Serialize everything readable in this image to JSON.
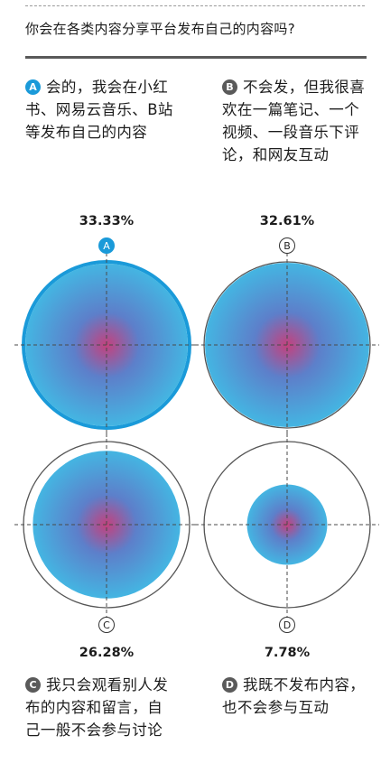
{
  "question": "你会在各类内容分享平台发布自己的内容吗?",
  "options": [
    {
      "letter": "A",
      "text": "会的，我会在小红书、网易云音乐、B站等发布自己的内容"
    },
    {
      "letter": "B",
      "text": "不会发，但我很喜欢在一篇笔记、一个视频、一段音乐下评论，和网友互动"
    },
    {
      "letter": "C",
      "text": "我只会观看别人发布的内容和留言，自己一般不会参与讨论"
    },
    {
      "letter": "D",
      "text": "我既不发布内容，也不会参与互动"
    }
  ],
  "colors": {
    "accent": "#1a9ad9",
    "gradient_center": "#c4417d",
    "gradient_mid": "#5d7fca",
    "gradient_edge": "#44b5e2",
    "outline": "#555555",
    "badge_dark": "#5a5a5a"
  },
  "chart_data": {
    "type": "proportional-circle",
    "categories": [
      "A",
      "B",
      "C",
      "D"
    ],
    "values": [
      33.33,
      32.61,
      26.28,
      7.78
    ],
    "value_labels": [
      "33.33%",
      "32.61%",
      "26.28%",
      "7.78%"
    ],
    "unit": "%",
    "highlight": "A"
  }
}
